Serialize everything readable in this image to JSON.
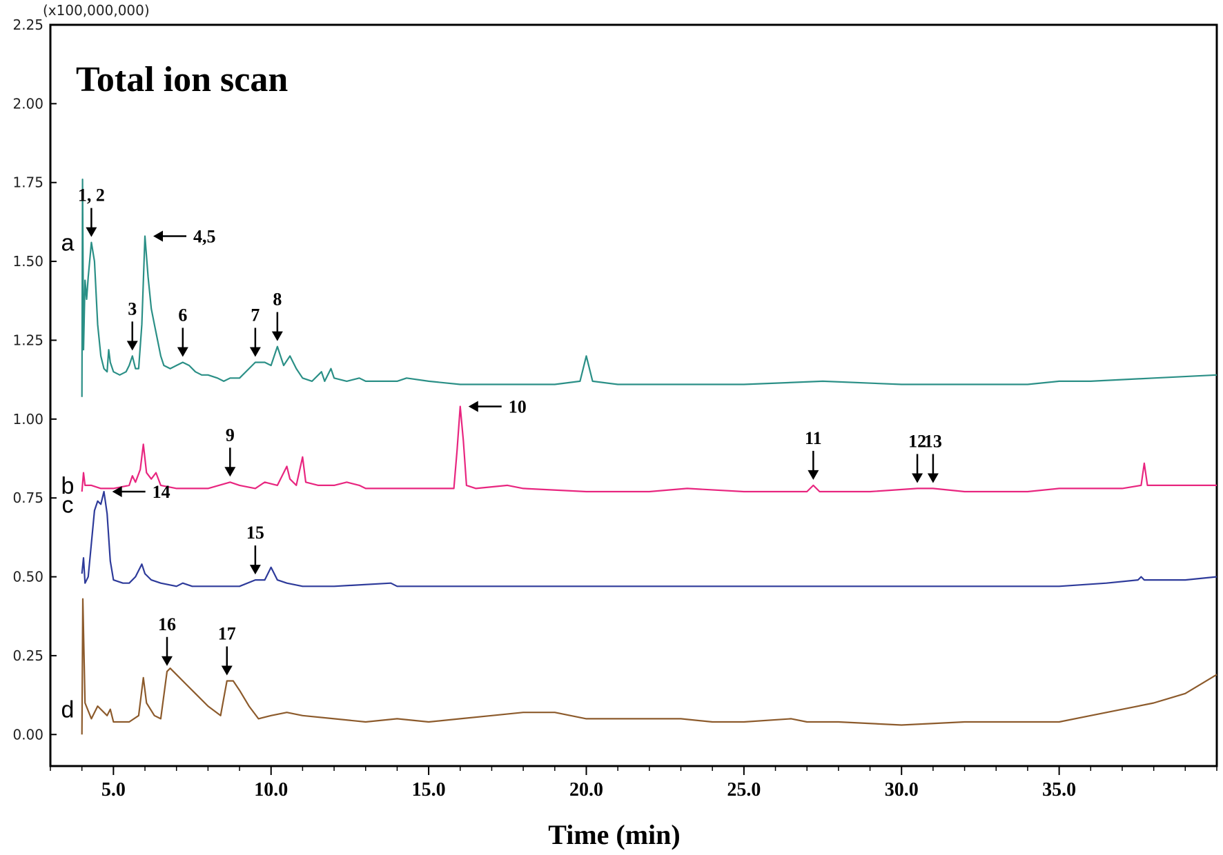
{
  "chart_data": {
    "type": "line",
    "title": "Total ion scan",
    "xlabel": "Time (min)",
    "ylabel": "",
    "y_multiplier": "(x100,000,000)",
    "xlim": [
      3.0,
      40.0
    ],
    "ylim": [
      -0.1,
      2.25
    ],
    "x_ticks": [
      5.0,
      10.0,
      15.0,
      20.0,
      25.0,
      30.0,
      35.0
    ],
    "x_tick_labels": [
      "5.0",
      "10.0",
      "15.0",
      "20.0",
      "25.0",
      "30.0",
      "35.0"
    ],
    "y_ticks": [
      0.0,
      0.25,
      0.5,
      0.75,
      1.0,
      1.25,
      1.5,
      1.75,
      2.0,
      2.25
    ],
    "y_tick_labels": [
      "0.00",
      "0.25",
      "0.50",
      "0.75",
      "1.00",
      "1.25",
      "1.50",
      "1.75",
      "2.00",
      "2.25"
    ],
    "grid": false,
    "series": [
      {
        "label": "a",
        "color": "#2a8f86",
        "points": [
          [
            4.0,
            1.07
          ],
          [
            4.02,
            1.76
          ],
          [
            4.05,
            1.22
          ],
          [
            4.1,
            1.44
          ],
          [
            4.15,
            1.38
          ],
          [
            4.2,
            1.45
          ],
          [
            4.3,
            1.56
          ],
          [
            4.4,
            1.5
          ],
          [
            4.5,
            1.3
          ],
          [
            4.6,
            1.2
          ],
          [
            4.7,
            1.16
          ],
          [
            4.8,
            1.15
          ],
          [
            4.85,
            1.22
          ],
          [
            4.9,
            1.18
          ],
          [
            5.0,
            1.15
          ],
          [
            5.2,
            1.14
          ],
          [
            5.4,
            1.15
          ],
          [
            5.5,
            1.17
          ],
          [
            5.6,
            1.2
          ],
          [
            5.7,
            1.16
          ],
          [
            5.8,
            1.16
          ],
          [
            5.9,
            1.3
          ],
          [
            6.0,
            1.58
          ],
          [
            6.1,
            1.45
          ],
          [
            6.2,
            1.35
          ],
          [
            6.3,
            1.3
          ],
          [
            6.4,
            1.25
          ],
          [
            6.5,
            1.2
          ],
          [
            6.6,
            1.17
          ],
          [
            6.8,
            1.16
          ],
          [
            7.0,
            1.17
          ],
          [
            7.2,
            1.18
          ],
          [
            7.4,
            1.17
          ],
          [
            7.6,
            1.15
          ],
          [
            7.8,
            1.14
          ],
          [
            8.0,
            1.14
          ],
          [
            8.3,
            1.13
          ],
          [
            8.5,
            1.12
          ],
          [
            8.7,
            1.13
          ],
          [
            9.0,
            1.13
          ],
          [
            9.3,
            1.16
          ],
          [
            9.5,
            1.18
          ],
          [
            9.8,
            1.18
          ],
          [
            10.0,
            1.17
          ],
          [
            10.2,
            1.23
          ],
          [
            10.3,
            1.2
          ],
          [
            10.4,
            1.17
          ],
          [
            10.6,
            1.2
          ],
          [
            10.8,
            1.16
          ],
          [
            11.0,
            1.13
          ],
          [
            11.3,
            1.12
          ],
          [
            11.6,
            1.15
          ],
          [
            11.7,
            1.12
          ],
          [
            11.9,
            1.16
          ],
          [
            12.0,
            1.13
          ],
          [
            12.4,
            1.12
          ],
          [
            12.8,
            1.13
          ],
          [
            13.0,
            1.12
          ],
          [
            14.0,
            1.12
          ],
          [
            14.3,
            1.13
          ],
          [
            15.0,
            1.12
          ],
          [
            16.0,
            1.11
          ],
          [
            18.0,
            1.11
          ],
          [
            19.0,
            1.11
          ],
          [
            19.8,
            1.12
          ],
          [
            20.0,
            1.2
          ],
          [
            20.2,
            1.12
          ],
          [
            21.0,
            1.11
          ],
          [
            23.0,
            1.11
          ],
          [
            25.0,
            1.11
          ],
          [
            27.5,
            1.12
          ],
          [
            30.0,
            1.11
          ],
          [
            32.0,
            1.11
          ],
          [
            34.0,
            1.11
          ],
          [
            35.0,
            1.12
          ],
          [
            36.0,
            1.12
          ],
          [
            38.0,
            1.13
          ],
          [
            40.0,
            1.14
          ]
        ]
      },
      {
        "label": "b",
        "color": "#e8257f",
        "points": [
          [
            4.0,
            0.77
          ],
          [
            4.05,
            0.83
          ],
          [
            4.1,
            0.79
          ],
          [
            4.3,
            0.79
          ],
          [
            4.6,
            0.78
          ],
          [
            5.0,
            0.78
          ],
          [
            5.5,
            0.79
          ],
          [
            5.6,
            0.82
          ],
          [
            5.7,
            0.8
          ],
          [
            5.85,
            0.84
          ],
          [
            5.95,
            0.92
          ],
          [
            6.05,
            0.83
          ],
          [
            6.2,
            0.81
          ],
          [
            6.35,
            0.83
          ],
          [
            6.5,
            0.79
          ],
          [
            7.0,
            0.78
          ],
          [
            8.0,
            0.78
          ],
          [
            8.7,
            0.8
          ],
          [
            9.0,
            0.79
          ],
          [
            9.5,
            0.78
          ],
          [
            9.8,
            0.8
          ],
          [
            10.2,
            0.79
          ],
          [
            10.5,
            0.85
          ],
          [
            10.6,
            0.81
          ],
          [
            10.8,
            0.79
          ],
          [
            11.0,
            0.88
          ],
          [
            11.1,
            0.8
          ],
          [
            11.5,
            0.79
          ],
          [
            12.0,
            0.79
          ],
          [
            12.4,
            0.8
          ],
          [
            12.8,
            0.79
          ],
          [
            13.0,
            0.78
          ],
          [
            14.0,
            0.78
          ],
          [
            15.0,
            0.78
          ],
          [
            15.8,
            0.78
          ],
          [
            15.9,
            0.9
          ],
          [
            16.0,
            1.04
          ],
          [
            16.1,
            0.93
          ],
          [
            16.2,
            0.79
          ],
          [
            16.5,
            0.78
          ],
          [
            17.5,
            0.79
          ],
          [
            18.0,
            0.78
          ],
          [
            20.0,
            0.77
          ],
          [
            22.0,
            0.77
          ],
          [
            23.2,
            0.78
          ],
          [
            25.0,
            0.77
          ],
          [
            27.0,
            0.77
          ],
          [
            27.2,
            0.79
          ],
          [
            27.4,
            0.77
          ],
          [
            29.0,
            0.77
          ],
          [
            30.5,
            0.78
          ],
          [
            31.0,
            0.78
          ],
          [
            32.0,
            0.77
          ],
          [
            34.0,
            0.77
          ],
          [
            35.0,
            0.78
          ],
          [
            37.0,
            0.78
          ],
          [
            37.6,
            0.79
          ],
          [
            37.7,
            0.86
          ],
          [
            37.8,
            0.79
          ],
          [
            39.0,
            0.79
          ],
          [
            40.0,
            0.79
          ]
        ]
      },
      {
        "label": "c",
        "color": "#2d3a9a",
        "points": [
          [
            4.0,
            0.51
          ],
          [
            4.05,
            0.56
          ],
          [
            4.1,
            0.48
          ],
          [
            4.2,
            0.5
          ],
          [
            4.4,
            0.71
          ],
          [
            4.5,
            0.74
          ],
          [
            4.6,
            0.73
          ],
          [
            4.7,
            0.77
          ],
          [
            4.8,
            0.7
          ],
          [
            4.9,
            0.55
          ],
          [
            5.0,
            0.49
          ],
          [
            5.3,
            0.48
          ],
          [
            5.5,
            0.48
          ],
          [
            5.7,
            0.5
          ],
          [
            5.9,
            0.54
          ],
          [
            6.0,
            0.51
          ],
          [
            6.2,
            0.49
          ],
          [
            6.5,
            0.48
          ],
          [
            7.0,
            0.47
          ],
          [
            7.2,
            0.48
          ],
          [
            7.5,
            0.47
          ],
          [
            8.0,
            0.47
          ],
          [
            9.0,
            0.47
          ],
          [
            9.5,
            0.49
          ],
          [
            9.8,
            0.49
          ],
          [
            10.0,
            0.53
          ],
          [
            10.2,
            0.49
          ],
          [
            10.5,
            0.48
          ],
          [
            11.0,
            0.47
          ],
          [
            12.0,
            0.47
          ],
          [
            13.8,
            0.48
          ],
          [
            14.0,
            0.47
          ],
          [
            15.0,
            0.47
          ],
          [
            16.0,
            0.47
          ],
          [
            20.0,
            0.47
          ],
          [
            23.0,
            0.47
          ],
          [
            25.0,
            0.47
          ],
          [
            28.0,
            0.47
          ],
          [
            30.0,
            0.47
          ],
          [
            33.0,
            0.47
          ],
          [
            35.0,
            0.47
          ],
          [
            36.5,
            0.48
          ],
          [
            37.5,
            0.49
          ],
          [
            37.6,
            0.5
          ],
          [
            37.7,
            0.49
          ],
          [
            39.0,
            0.49
          ],
          [
            40.0,
            0.5
          ]
        ]
      },
      {
        "label": "d",
        "color": "#8c5a2b",
        "points": [
          [
            4.0,
            0.0
          ],
          [
            4.03,
            0.43
          ],
          [
            4.1,
            0.1
          ],
          [
            4.3,
            0.05
          ],
          [
            4.5,
            0.09
          ],
          [
            4.8,
            0.06
          ],
          [
            4.9,
            0.08
          ],
          [
            5.0,
            0.04
          ],
          [
            5.5,
            0.04
          ],
          [
            5.8,
            0.06
          ],
          [
            5.95,
            0.18
          ],
          [
            6.05,
            0.1
          ],
          [
            6.3,
            0.06
          ],
          [
            6.5,
            0.05
          ],
          [
            6.7,
            0.2
          ],
          [
            6.8,
            0.21
          ],
          [
            7.0,
            0.19
          ],
          [
            7.3,
            0.16
          ],
          [
            7.6,
            0.13
          ],
          [
            8.0,
            0.09
          ],
          [
            8.4,
            0.06
          ],
          [
            8.6,
            0.17
          ],
          [
            8.8,
            0.17
          ],
          [
            9.0,
            0.14
          ],
          [
            9.3,
            0.09
          ],
          [
            9.6,
            0.05
          ],
          [
            10.0,
            0.06
          ],
          [
            10.5,
            0.07
          ],
          [
            11.0,
            0.06
          ],
          [
            12.0,
            0.05
          ],
          [
            13.0,
            0.04
          ],
          [
            14.0,
            0.05
          ],
          [
            15.0,
            0.04
          ],
          [
            16.0,
            0.05
          ],
          [
            17.0,
            0.06
          ],
          [
            18.0,
            0.07
          ],
          [
            19.0,
            0.07
          ],
          [
            20.0,
            0.05
          ],
          [
            21.0,
            0.05
          ],
          [
            22.0,
            0.05
          ],
          [
            23.0,
            0.05
          ],
          [
            24.0,
            0.04
          ],
          [
            25.0,
            0.04
          ],
          [
            26.5,
            0.05
          ],
          [
            27.0,
            0.04
          ],
          [
            28.0,
            0.04
          ],
          [
            30.0,
            0.03
          ],
          [
            32.0,
            0.04
          ],
          [
            34.0,
            0.04
          ],
          [
            35.0,
            0.04
          ],
          [
            36.0,
            0.06
          ],
          [
            37.0,
            0.08
          ],
          [
            38.0,
            0.1
          ],
          [
            39.0,
            0.13
          ],
          [
            39.5,
            0.16
          ],
          [
            40.0,
            0.19
          ]
        ]
      }
    ],
    "annotations": [
      {
        "text": "1, 2",
        "series": "a",
        "x": 4.3,
        "direction": "down"
      },
      {
        "text": "3",
        "series": "a",
        "x": 5.6,
        "direction": "down"
      },
      {
        "text": "4,5",
        "series": "a",
        "x": 6.0,
        "direction": "left"
      },
      {
        "text": "6",
        "series": "a",
        "x": 7.2,
        "direction": "down"
      },
      {
        "text": "7",
        "series": "a",
        "x": 9.5,
        "direction": "down"
      },
      {
        "text": "8",
        "series": "a",
        "x": 10.2,
        "direction": "down"
      },
      {
        "text": "9",
        "series": "b",
        "x": 8.7,
        "direction": "down"
      },
      {
        "text": "10",
        "series": "b",
        "x": 16.0,
        "direction": "left"
      },
      {
        "text": "11",
        "series": "b",
        "x": 27.2,
        "direction": "down"
      },
      {
        "text": "12",
        "series": "b",
        "x": 30.5,
        "direction": "down"
      },
      {
        "text": "13",
        "series": "b",
        "x": 31.0,
        "direction": "down"
      },
      {
        "text": "14",
        "series": "c",
        "x": 4.7,
        "direction": "left"
      },
      {
        "text": "15",
        "series": "c",
        "x": 9.5,
        "direction": "down"
      },
      {
        "text": "16",
        "series": "d",
        "x": 6.7,
        "direction": "down"
      },
      {
        "text": "17",
        "series": "d",
        "x": 8.6,
        "direction": "down"
      }
    ]
  }
}
